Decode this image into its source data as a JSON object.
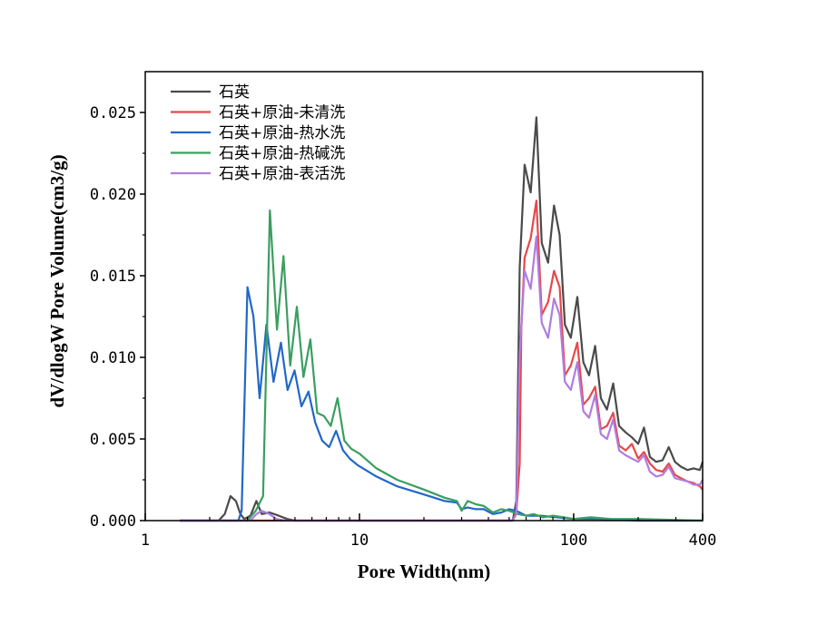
{
  "chart_data": {
    "type": "line",
    "title": "",
    "xlabel": "Pore Width(nm)",
    "ylabel": "dV/dlogW Pore Volume(cm3/g)",
    "xscale": "log",
    "xlim": [
      1,
      400
    ],
    "ylim": [
      0,
      0.0275
    ],
    "xticks": [
      {
        "value": 1,
        "label": "1"
      },
      {
        "value": 10,
        "label": "10"
      },
      {
        "value": 100,
        "label": "100"
      },
      {
        "value": 400,
        "label": "400"
      }
    ],
    "yticks": [
      {
        "value": 0.0,
        "label": "0.000"
      },
      {
        "value": 0.005,
        "label": "0.005"
      },
      {
        "value": 0.01,
        "label": "0.010"
      },
      {
        "value": 0.015,
        "label": "0.015"
      },
      {
        "value": 0.02,
        "label": "0.020"
      },
      {
        "value": 0.025,
        "label": "0.025"
      }
    ],
    "legend_position": "top-left",
    "series": [
      {
        "name": "石英",
        "color": "#4a4a4a",
        "points": [
          [
            1.45,
            0
          ],
          [
            2.2,
            0
          ],
          [
            2.35,
            0.0004
          ],
          [
            2.5,
            0.0015
          ],
          [
            2.65,
            0.0012
          ],
          [
            2.78,
            0.0004
          ],
          [
            2.9,
            0.0001
          ],
          [
            3.1,
            0.0003
          ],
          [
            3.3,
            0.0012
          ],
          [
            3.5,
            0.0004
          ],
          [
            3.8,
            0.0005
          ],
          [
            4.2,
            0.0003
          ],
          [
            4.6,
            0.0001
          ],
          [
            5.0,
            0
          ],
          [
            10,
            0
          ],
          [
            20,
            0
          ],
          [
            40,
            0
          ],
          [
            52,
            0
          ],
          [
            54,
            0.0012
          ],
          [
            56,
            0.0155
          ],
          [
            59,
            0.0218
          ],
          [
            63,
            0.0201
          ],
          [
            67,
            0.0247
          ],
          [
            71,
            0.017
          ],
          [
            76,
            0.0158
          ],
          [
            81,
            0.0193
          ],
          [
            86,
            0.0175
          ],
          [
            91,
            0.012
          ],
          [
            97,
            0.0112
          ],
          [
            104,
            0.0137
          ],
          [
            111,
            0.0097
          ],
          [
            118,
            0.0089
          ],
          [
            126,
            0.0107
          ],
          [
            134,
            0.0075
          ],
          [
            143,
            0.0068
          ],
          [
            153,
            0.0084
          ],
          [
            163,
            0.0058
          ],
          [
            175,
            0.0054
          ],
          [
            187,
            0.0051
          ],
          [
            200,
            0.0047
          ],
          [
            213,
            0.0057
          ],
          [
            227,
            0.0039
          ],
          [
            243,
            0.0036
          ],
          [
            260,
            0.0037
          ],
          [
            278,
            0.0045
          ],
          [
            297,
            0.0036
          ],
          [
            317,
            0.0033
          ],
          [
            340,
            0.0031
          ],
          [
            363,
            0.0032
          ],
          [
            388,
            0.0031
          ],
          [
            400,
            0.0036
          ]
        ]
      },
      {
        "name": "石英+原油-未清洗",
        "color": "#e8474b",
        "points": [
          [
            1.45,
            0
          ],
          [
            10,
            0
          ],
          [
            40,
            0
          ],
          [
            52,
            0
          ],
          [
            54,
            0.0005
          ],
          [
            56,
            0.0035
          ],
          [
            57,
            0.0118
          ],
          [
            59,
            0.0161
          ],
          [
            63,
            0.0173
          ],
          [
            67,
            0.0196
          ],
          [
            71,
            0.0126
          ],
          [
            76,
            0.0134
          ],
          [
            81,
            0.0153
          ],
          [
            86,
            0.0143
          ],
          [
            91,
            0.0089
          ],
          [
            97,
            0.0095
          ],
          [
            104,
            0.0109
          ],
          [
            111,
            0.0071
          ],
          [
            118,
            0.0075
          ],
          [
            126,
            0.0082
          ],
          [
            134,
            0.0056
          ],
          [
            143,
            0.0058
          ],
          [
            153,
            0.0066
          ],
          [
            163,
            0.0046
          ],
          [
            175,
            0.0043
          ],
          [
            187,
            0.0047
          ],
          [
            200,
            0.0038
          ],
          [
            213,
            0.0042
          ],
          [
            227,
            0.0035
          ],
          [
            243,
            0.0031
          ],
          [
            260,
            0.003
          ],
          [
            278,
            0.0035
          ],
          [
            297,
            0.0028
          ],
          [
            317,
            0.0026
          ],
          [
            340,
            0.0024
          ],
          [
            363,
            0.0023
          ],
          [
            388,
            0.0021
          ],
          [
            400,
            0.0019
          ]
        ]
      },
      {
        "name": "石英+原油-热水洗",
        "color": "#2168c8",
        "points": [
          [
            1.45,
            0
          ],
          [
            2.5,
            0
          ],
          [
            2.72,
            0
          ],
          [
            2.82,
            0.0006
          ],
          [
            3.0,
            0.0143
          ],
          [
            3.2,
            0.0125
          ],
          [
            3.42,
            0.0075
          ],
          [
            3.68,
            0.012
          ],
          [
            3.97,
            0.0085
          ],
          [
            4.3,
            0.0109
          ],
          [
            4.62,
            0.008
          ],
          [
            4.98,
            0.0092
          ],
          [
            5.36,
            0.007
          ],
          [
            5.78,
            0.0079
          ],
          [
            6.22,
            0.006
          ],
          [
            6.7,
            0.0049
          ],
          [
            7.22,
            0.0045
          ],
          [
            7.78,
            0.0055
          ],
          [
            8.38,
            0.0043
          ],
          [
            9.0,
            0.0038
          ],
          [
            9.8,
            0.0034
          ],
          [
            12,
            0.0027
          ],
          [
            15,
            0.0021
          ],
          [
            20,
            0.0016
          ],
          [
            25,
            0.0012
          ],
          [
            28.5,
            0.0011
          ],
          [
            30,
            0.0007
          ],
          [
            32,
            0.0008
          ],
          [
            35,
            0.0007
          ],
          [
            38,
            0.0007
          ],
          [
            42,
            0.0004
          ],
          [
            46,
            0.0005
          ],
          [
            50,
            0.0007
          ],
          [
            54,
            0.0006
          ],
          [
            60,
            0.0003
          ],
          [
            70,
            0.0003
          ],
          [
            100,
            0.0001
          ],
          [
            130,
            0.0001
          ],
          [
            200,
            0
          ],
          [
            400,
            0
          ]
        ]
      },
      {
        "name": "石英+原油-热碱洗",
        "color": "#3a9e60",
        "points": [
          [
            1.45,
            0
          ],
          [
            3.0,
            0
          ],
          [
            3.28,
            0.0006
          ],
          [
            3.55,
            0.0015
          ],
          [
            3.82,
            0.019
          ],
          [
            4.12,
            0.0117
          ],
          [
            4.42,
            0.0162
          ],
          [
            4.75,
            0.0095
          ],
          [
            5.1,
            0.0131
          ],
          [
            5.48,
            0.0088
          ],
          [
            5.9,
            0.0111
          ],
          [
            6.35,
            0.0066
          ],
          [
            6.83,
            0.0064
          ],
          [
            7.35,
            0.0058
          ],
          [
            7.9,
            0.0075
          ],
          [
            8.5,
            0.0049
          ],
          [
            9.15,
            0.0044
          ],
          [
            10,
            0.0041
          ],
          [
            12,
            0.0032
          ],
          [
            15,
            0.0025
          ],
          [
            20,
            0.0019
          ],
          [
            25,
            0.0014
          ],
          [
            28.5,
            0.0012
          ],
          [
            30,
            0.0006
          ],
          [
            32,
            0.0012
          ],
          [
            35,
            0.001
          ],
          [
            38,
            0.0009
          ],
          [
            42,
            0.0005
          ],
          [
            46,
            0.0007
          ],
          [
            50,
            0.0006
          ],
          [
            55,
            0.0004
          ],
          [
            60,
            0.0003
          ],
          [
            65,
            0.0004
          ],
          [
            72,
            0.0002
          ],
          [
            80,
            0.0003
          ],
          [
            90,
            0.0002
          ],
          [
            100,
            0.0001
          ],
          [
            120,
            0.0002
          ],
          [
            150,
            0.0001
          ],
          [
            200,
            0.0001
          ],
          [
            400,
            0
          ]
        ]
      },
      {
        "name": "石英+原油-表活洗",
        "color": "#b07ce0",
        "points": [
          [
            1.45,
            0
          ],
          [
            3.1,
            0
          ],
          [
            3.3,
            0.0004
          ],
          [
            3.5,
            0.0006
          ],
          [
            3.8,
            0.0004
          ],
          [
            4.1,
            0.0001
          ],
          [
            4.5,
            0
          ],
          [
            10,
            0
          ],
          [
            40,
            0
          ],
          [
            52,
            0
          ],
          [
            54,
            0.0004
          ],
          [
            56,
            0.0102
          ],
          [
            59,
            0.0153
          ],
          [
            63,
            0.0142
          ],
          [
            67,
            0.0174
          ],
          [
            71,
            0.0121
          ],
          [
            76,
            0.0112
          ],
          [
            81,
            0.0136
          ],
          [
            86,
            0.0126
          ],
          [
            91,
            0.0085
          ],
          [
            97,
            0.008
          ],
          [
            104,
            0.0097
          ],
          [
            111,
            0.0067
          ],
          [
            118,
            0.0063
          ],
          [
            126,
            0.0077
          ],
          [
            134,
            0.0053
          ],
          [
            143,
            0.005
          ],
          [
            153,
            0.0062
          ],
          [
            163,
            0.0043
          ],
          [
            175,
            0.004
          ],
          [
            187,
            0.0038
          ],
          [
            200,
            0.0036
          ],
          [
            213,
            0.004
          ],
          [
            227,
            0.003
          ],
          [
            243,
            0.0027
          ],
          [
            260,
            0.0028
          ],
          [
            278,
            0.0033
          ],
          [
            297,
            0.0026
          ],
          [
            317,
            0.0025
          ],
          [
            340,
            0.0024
          ],
          [
            363,
            0.0022
          ],
          [
            388,
            0.0022
          ],
          [
            400,
            0.0025
          ]
        ]
      }
    ]
  }
}
